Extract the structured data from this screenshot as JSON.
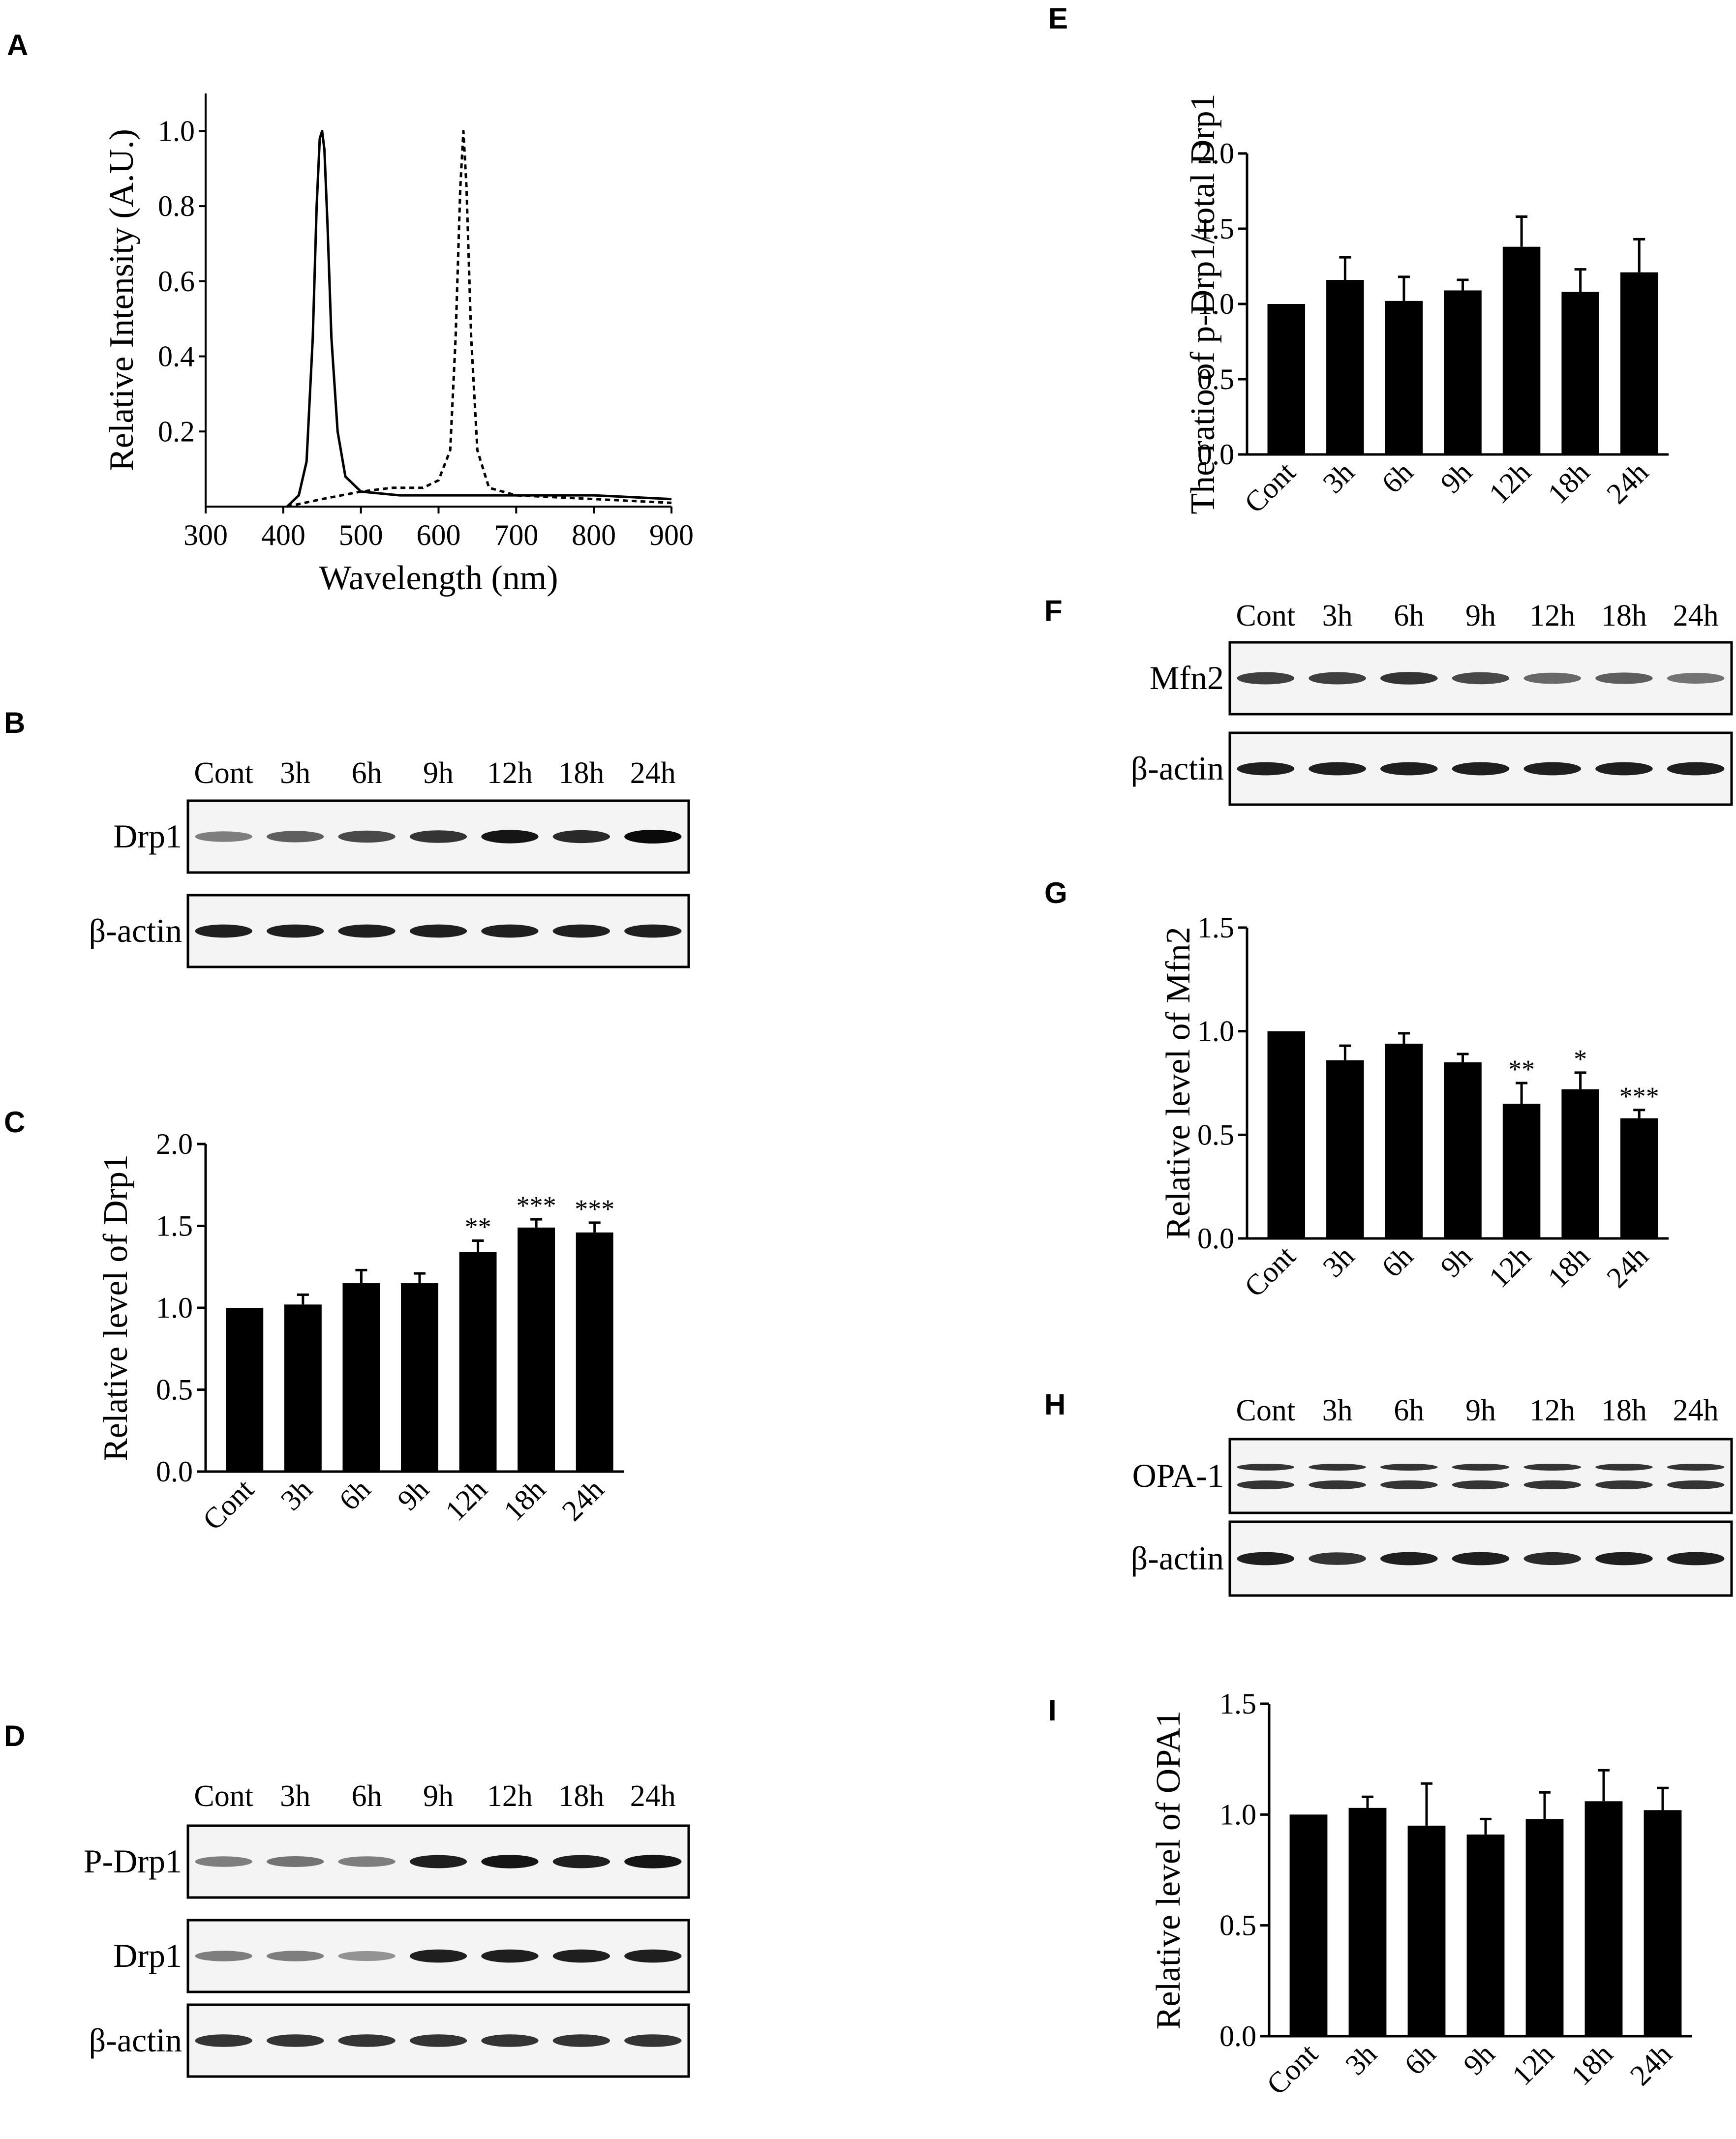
{
  "panels": {
    "A": "A",
    "B": "B",
    "C": "C",
    "D": "D",
    "E": "E",
    "F": "F",
    "G": "G",
    "H": "H",
    "I": "I"
  },
  "lanes": [
    "Cont",
    "3h",
    "6h",
    "9h",
    "12h",
    "18h",
    "24h"
  ],
  "blots": {
    "B": {
      "rows": [
        "Drp1",
        "β-actin"
      ],
      "intensity": [
        [
          0.45,
          0.6,
          0.7,
          0.8,
          0.95,
          0.85,
          1.0
        ],
        [
          0.9,
          0.9,
          0.9,
          0.9,
          0.9,
          0.9,
          0.9
        ]
      ]
    },
    "D": {
      "rows": [
        "P-Drp1",
        "Drp1",
        "β-actin"
      ],
      "intensity": [
        [
          0.45,
          0.5,
          0.45,
          0.9,
          0.95,
          0.9,
          0.95
        ],
        [
          0.45,
          0.45,
          0.35,
          0.9,
          0.9,
          0.9,
          0.9
        ],
        [
          0.8,
          0.8,
          0.8,
          0.8,
          0.8,
          0.8,
          0.8
        ]
      ]
    },
    "F": {
      "rows": [
        "Mfn2",
        "β-actin"
      ],
      "intensity": [
        [
          0.75,
          0.75,
          0.8,
          0.7,
          0.55,
          0.6,
          0.5
        ],
        [
          0.9,
          0.9,
          0.9,
          0.9,
          0.9,
          0.9,
          0.9
        ]
      ]
    },
    "H": {
      "rows": [
        "OPA-1",
        "β-actin"
      ],
      "intensity": [
        [
          0.8,
          0.8,
          0.8,
          0.8,
          0.8,
          0.8,
          0.8
        ],
        [
          0.9,
          0.8,
          0.9,
          0.9,
          0.85,
          0.9,
          0.9
        ]
      ]
    }
  },
  "chart_data": [
    {
      "id": "A",
      "type": "line",
      "xlabel": "Wavelength (nm)",
      "ylabel": "Relative Intensity (A.U.)",
      "xlim": [
        300,
        900
      ],
      "ylim": [
        0,
        1.1
      ],
      "xticks": [
        "300",
        "400",
        "500",
        "600",
        "700",
        "800",
        "900"
      ],
      "yticks": [
        "0.2",
        "0.4",
        "0.6",
        "0.8",
        "1.0"
      ],
      "series": [
        {
          "name": "solid",
          "style": "solid",
          "x": [
            405,
            420,
            430,
            438,
            443,
            447,
            450,
            453,
            457,
            462,
            470,
            480,
            500,
            550,
            600,
            700,
            800,
            900
          ],
          "y": [
            0.0,
            0.03,
            0.12,
            0.45,
            0.8,
            0.98,
            1.0,
            0.95,
            0.75,
            0.45,
            0.2,
            0.08,
            0.04,
            0.03,
            0.03,
            0.03,
            0.03,
            0.02
          ]
        },
        {
          "name": "dashed",
          "style": "dashed",
          "x": [
            405,
            450,
            500,
            540,
            580,
            600,
            615,
            622,
            628,
            632,
            636,
            642,
            650,
            665,
            700,
            800,
            900
          ],
          "y": [
            0.0,
            0.02,
            0.04,
            0.05,
            0.05,
            0.07,
            0.15,
            0.45,
            0.85,
            1.0,
            0.85,
            0.45,
            0.15,
            0.05,
            0.03,
            0.02,
            0.01
          ]
        }
      ]
    },
    {
      "id": "C",
      "type": "bar",
      "ylabel": "Relative level of Drp1",
      "categories": [
        "Cont",
        "3h",
        "6h",
        "9h",
        "12h",
        "18h",
        "24h"
      ],
      "values": [
        1.0,
        1.02,
        1.15,
        1.15,
        1.34,
        1.49,
        1.46
      ],
      "errors": [
        0.0,
        0.06,
        0.08,
        0.06,
        0.07,
        0.05,
        0.06
      ],
      "significance": [
        "",
        "",
        "",
        "",
        "**",
        "***",
        "***"
      ],
      "ylim": [
        0,
        2.0
      ],
      "yticks": [
        "0.0",
        "0.5",
        "1.0",
        "1.5",
        "2.0"
      ]
    },
    {
      "id": "E",
      "type": "bar",
      "ylabel": "The ratio of p-Drp1/total Drp1",
      "categories": [
        "Cont",
        "3h",
        "6h",
        "9h",
        "12h",
        "18h",
        "24h"
      ],
      "values": [
        1.0,
        1.16,
        1.02,
        1.09,
        1.38,
        1.08,
        1.21
      ],
      "errors": [
        0.0,
        0.15,
        0.16,
        0.07,
        0.2,
        0.15,
        0.22
      ],
      "significance": [
        "",
        "",
        "",
        "",
        "",
        "",
        ""
      ],
      "ylim": [
        0,
        2.0
      ],
      "yticks": [
        "0.0",
        "0.5",
        "1.0",
        "1.5",
        "2.0"
      ]
    },
    {
      "id": "G",
      "type": "bar",
      "ylabel": "Relative level of Mfn2",
      "categories": [
        "Cont",
        "3h",
        "6h",
        "9h",
        "12h",
        "18h",
        "24h"
      ],
      "values": [
        1.0,
        0.86,
        0.94,
        0.85,
        0.65,
        0.72,
        0.58
      ],
      "errors": [
        0.0,
        0.07,
        0.05,
        0.04,
        0.1,
        0.08,
        0.04
      ],
      "significance": [
        "",
        "",
        "",
        "",
        "**",
        "*",
        "***"
      ],
      "ylim": [
        0,
        1.5
      ],
      "yticks": [
        "0.0",
        "0.5",
        "1.0",
        "1.5"
      ]
    },
    {
      "id": "I",
      "type": "bar",
      "ylabel": "Relative level of OPA1",
      "categories": [
        "Cont",
        "3h",
        "6h",
        "9h",
        "12h",
        "18h",
        "24h"
      ],
      "values": [
        1.0,
        1.03,
        0.95,
        0.91,
        0.98,
        1.06,
        1.02
      ],
      "errors": [
        0.0,
        0.05,
        0.19,
        0.07,
        0.12,
        0.14,
        0.1
      ],
      "significance": [
        "",
        "",
        "",
        "",
        "",
        "",
        ""
      ],
      "ylim": [
        0,
        1.5
      ],
      "yticks": [
        "0.0",
        "0.5",
        "1.0",
        "1.5"
      ]
    }
  ]
}
